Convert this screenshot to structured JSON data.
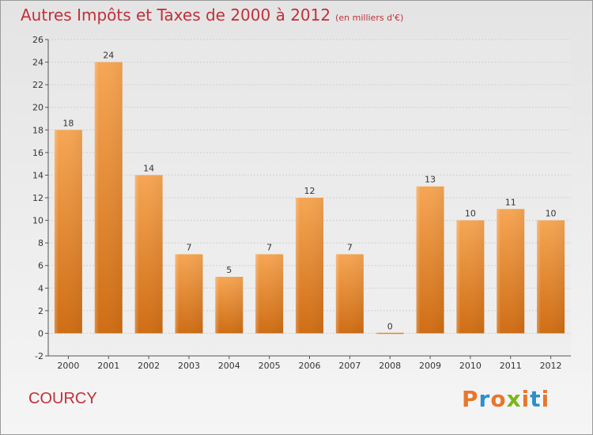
{
  "header": {
    "title": "Autres Impôts et Taxes de 2000 à 2012",
    "subtitle": "(en milliers d'€)"
  },
  "footer": {
    "city": "COURCY",
    "brand": "Proxiti",
    "brand_colors": [
      "#e8762d",
      "#2e8ec9",
      "#e8762d",
      "#7ab51d",
      "#e8762d",
      "#2e8ec9",
      "#e8762d"
    ]
  },
  "colors": {
    "title": "#c0303a",
    "bar_light": "#f6a654",
    "bar_dark": "#cf6d14",
    "grid": "#d0d0d0",
    "axis_text": "#333333"
  },
  "chart_data": {
    "type": "bar",
    "categories": [
      "2000",
      "2001",
      "2002",
      "2003",
      "2004",
      "2005",
      "2006",
      "2007",
      "2008",
      "2009",
      "2010",
      "2011",
      "2012"
    ],
    "values": [
      18,
      24,
      14,
      7,
      5,
      7,
      12,
      7,
      0,
      13,
      10,
      11,
      10
    ],
    "data_labels": [
      "18",
      "24",
      "14",
      "7",
      "5",
      "7",
      "12",
      "7",
      "0",
      "13",
      "10",
      "11",
      "10"
    ],
    "ylim": [
      -2,
      26
    ],
    "yticks": [
      -2,
      0,
      2,
      4,
      6,
      8,
      10,
      12,
      14,
      16,
      18,
      20,
      22,
      24,
      26
    ],
    "grid": true,
    "legend": "none"
  }
}
